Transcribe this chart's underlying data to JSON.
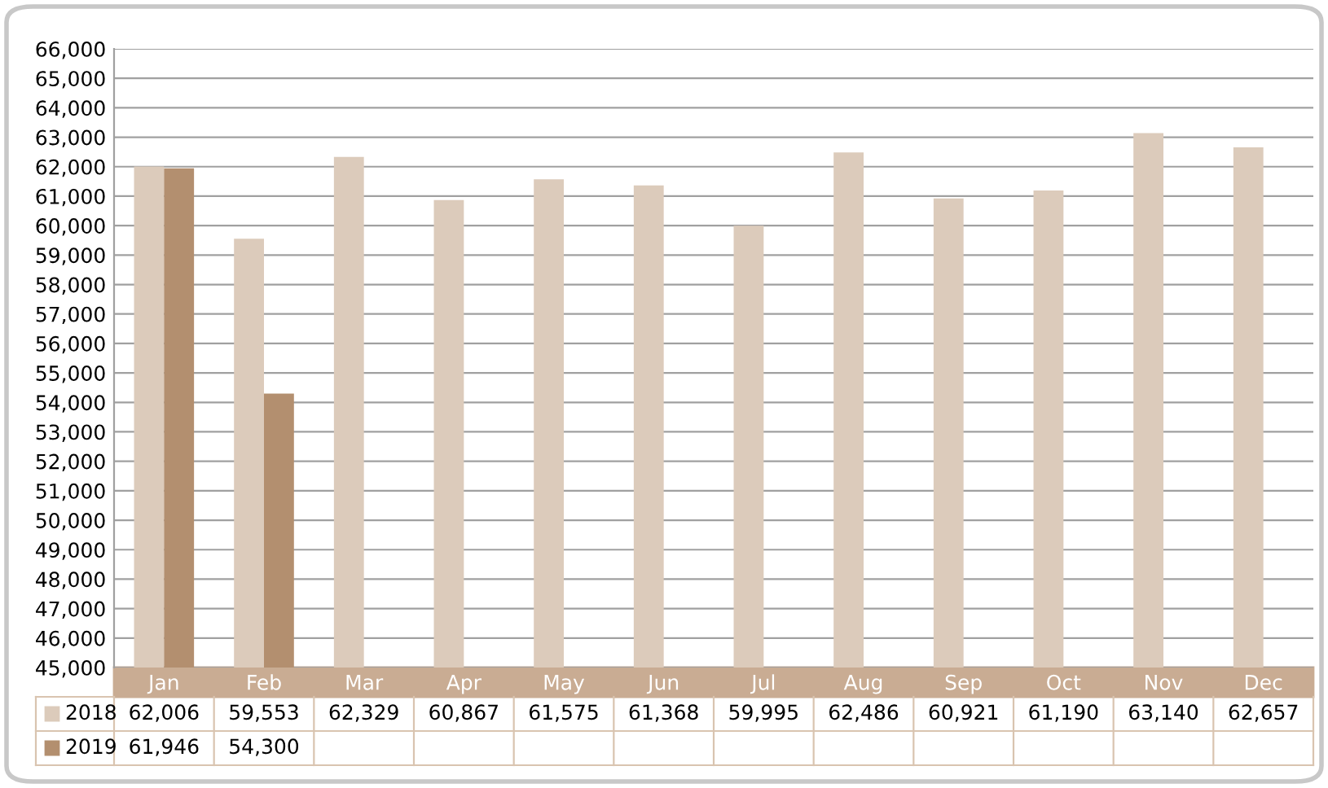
{
  "chart_data": {
    "type": "bar",
    "categories": [
      "Jan",
      "Feb",
      "Mar",
      "Apr",
      "May",
      "Jun",
      "Jul",
      "Aug",
      "Sep",
      "Oct",
      "Nov",
      "Dec"
    ],
    "series": [
      {
        "name": "2018",
        "color": "#dccbbb",
        "values": [
          62006,
          59553,
          62329,
          60867,
          61575,
          61368,
          59995,
          62486,
          60921,
          61190,
          63140,
          62657
        ],
        "value_labels": [
          "62,006",
          "59,553",
          "62,329",
          "60,867",
          "61,575",
          "61,368",
          "59,995",
          "62,486",
          "60,921",
          "61,190",
          "63,140",
          "62,657"
        ]
      },
      {
        "name": "2019",
        "color": "#b38f6f",
        "values": [
          61946,
          54300,
          null,
          null,
          null,
          null,
          null,
          null,
          null,
          null,
          null,
          null
        ],
        "value_labels": [
          "61,946",
          "54,300",
          null,
          null,
          null,
          null,
          null,
          null,
          null,
          null,
          null,
          null
        ]
      }
    ],
    "ylim": [
      45000,
      66000
    ],
    "yticks": [
      {
        "value": 45000,
        "label": "45,000"
      },
      {
        "value": 46000,
        "label": "46,000"
      },
      {
        "value": 47000,
        "label": "47,000"
      },
      {
        "value": 48000,
        "label": "48,000"
      },
      {
        "value": 49000,
        "label": "49,000"
      },
      {
        "value": 50000,
        "label": "50,000"
      },
      {
        "value": 51000,
        "label": "51,000"
      },
      {
        "value": 52000,
        "label": "52,000"
      },
      {
        "value": 53000,
        "label": "53,000"
      },
      {
        "value": 54000,
        "label": "54,000"
      },
      {
        "value": 55000,
        "label": "55,000"
      },
      {
        "value": 56000,
        "label": "56,000"
      },
      {
        "value": 57000,
        "label": "57,000"
      },
      {
        "value": 58000,
        "label": "58,000"
      },
      {
        "value": 59000,
        "label": "59,000"
      },
      {
        "value": 60000,
        "label": "60,000"
      },
      {
        "value": 61000,
        "label": "61,000"
      },
      {
        "value": 62000,
        "label": "62,000"
      },
      {
        "value": 63000,
        "label": "63,000"
      },
      {
        "value": 64000,
        "label": "64,000"
      },
      {
        "value": 65000,
        "label": "65,000"
      },
      {
        "value": 66000,
        "label": "66,000"
      }
    ],
    "grid": "y",
    "legend": "bottom"
  }
}
